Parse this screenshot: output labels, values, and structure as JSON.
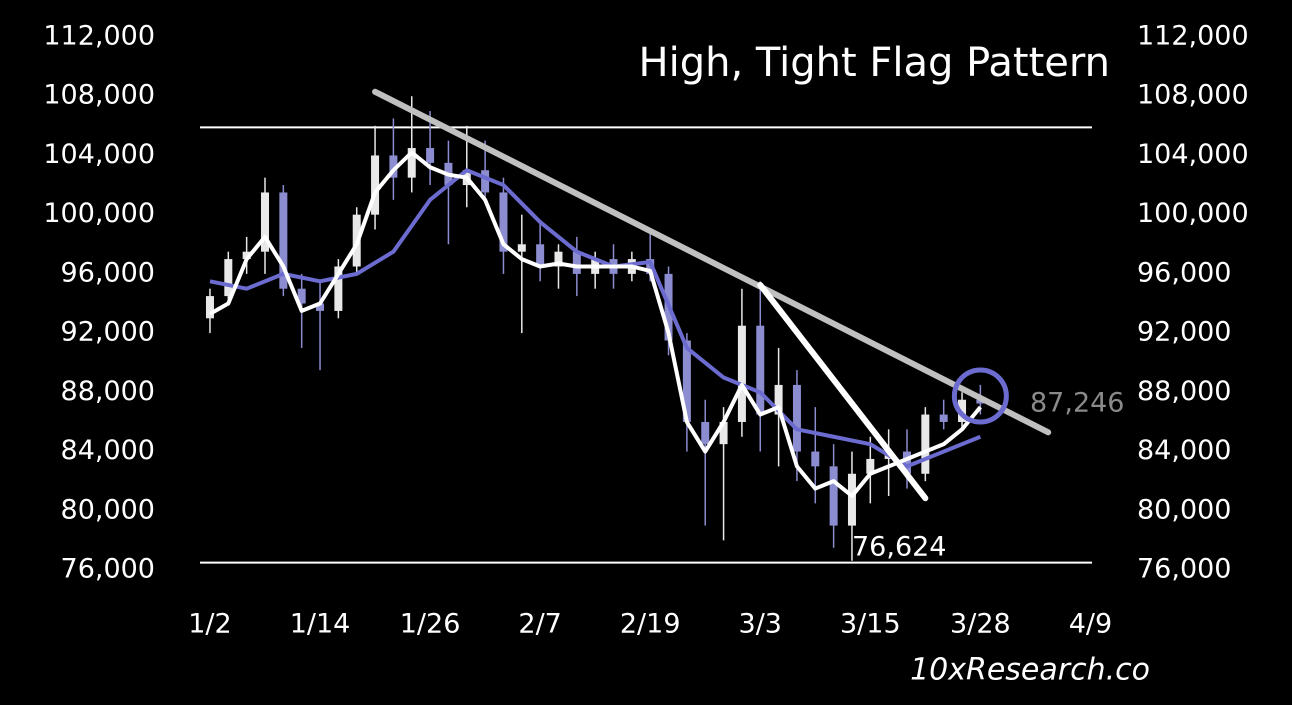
{
  "chart_data": {
    "type": "candlestick",
    "title": "High, Tight Flag Pattern",
    "watermark": "10xResearch.co",
    "x": [
      0,
      2,
      4,
      6,
      8,
      10,
      12,
      14,
      16,
      18,
      20,
      22,
      24,
      26,
      28,
      30,
      32,
      34,
      36,
      38,
      40,
      42,
      44,
      46,
      48,
      50,
      52,
      54,
      56,
      58,
      60,
      62,
      64,
      66,
      68,
      70,
      72,
      74,
      76,
      78,
      80,
      82,
      84
    ],
    "open": [
      93000,
      94500,
      97000,
      97500,
      101500,
      95000,
      94000,
      93500,
      96500,
      100000,
      104000,
      102500,
      104500,
      103500,
      102000,
      103000,
      101500,
      97500,
      98000,
      96500,
      97500,
      96000,
      97000,
      96000,
      97000,
      96000,
      91500,
      86000,
      84500,
      86000,
      92500,
      86500,
      88500,
      84000,
      83000,
      79000,
      82500,
      83500,
      84000,
      82500,
      86500,
      86000,
      87500
    ],
    "high": [
      95000,
      97500,
      98500,
      102500,
      102000,
      96000,
      95500,
      97000,
      100500,
      106000,
      106500,
      108000,
      107000,
      105000,
      106000,
      105000,
      102500,
      100000,
      99500,
      98000,
      98500,
      97500,
      98000,
      97500,
      99000,
      96500,
      92000,
      87500,
      87000,
      95000,
      95500,
      91000,
      89500,
      87000,
      84500,
      84000,
      85000,
      85500,
      85500,
      87000,
      87500,
      88000,
      88500
    ],
    "low": [
      92000,
      94000,
      96000,
      96000,
      94500,
      91000,
      89500,
      93000,
      96000,
      99000,
      101000,
      101500,
      102000,
      98000,
      100500,
      101000,
      96000,
      92000,
      95500,
      95000,
      94500,
      95000,
      95000,
      95500,
      95500,
      90500,
      84000,
      79000,
      78000,
      85000,
      84000,
      83000,
      82000,
      80500,
      77500,
      76624,
      80500,
      81000,
      81500,
      82000,
      85500,
      85500,
      86500
    ],
    "close": [
      94500,
      97000,
      97500,
      101500,
      95000,
      94000,
      93500,
      96500,
      100000,
      104000,
      102500,
      104500,
      103500,
      102000,
      103000,
      101500,
      97500,
      98000,
      96500,
      97500,
      96000,
      97000,
      96000,
      97000,
      96000,
      91500,
      86000,
      84500,
      86000,
      92500,
      86500,
      88500,
      84000,
      83000,
      79000,
      82500,
      83500,
      84000,
      82500,
      86500,
      86000,
      87500,
      87246
    ],
    "up_color": "#e8e8e8",
    "down_color": "#8c8cd0",
    "series": [
      {
        "color": "#ffffff",
        "x": [
          0,
          2,
          4,
          6,
          8,
          10,
          12,
          14,
          16,
          18,
          20,
          22,
          24,
          26,
          28,
          30,
          32,
          34,
          36,
          38,
          40,
          42,
          44,
          46,
          48,
          50,
          52,
          54,
          56,
          58,
          60,
          62,
          64,
          66,
          68,
          70,
          72,
          74,
          76,
          78,
          80,
          82,
          84
        ],
        "values": [
          93300,
          94000,
          97000,
          98500,
          96500,
          93500,
          94000,
          96000,
          98000,
          101500,
          103000,
          104200,
          103200,
          102700,
          102500,
          101000,
          98000,
          97000,
          96500,
          96700,
          96500,
          96500,
          96500,
          96500,
          96200,
          92000,
          86000,
          84000,
          86000,
          88500,
          86500,
          87000,
          83000,
          81500,
          82000,
          81000,
          82500,
          83000,
          83500,
          84000,
          84500,
          85500,
          87000
        ]
      },
      {
        "color": "#6b6bd0",
        "x": [
          0,
          4,
          8,
          12,
          16,
          20,
          24,
          28,
          32,
          36,
          40,
          44,
          48,
          52,
          56,
          60,
          64,
          68,
          72,
          76,
          80,
          84
        ],
        "values": [
          95500,
          95000,
          96000,
          95500,
          96000,
          97500,
          101000,
          103000,
          102000,
          99500,
          97500,
          96500,
          96800,
          91000,
          89000,
          88000,
          85500,
          85000,
          84500,
          83000,
          84000,
          85000
        ]
      }
    ],
    "trendlines": [
      {
        "color": "#c0c0c0",
        "x": [
          18,
          91.4
        ],
        "values": [
          108300,
          85300
        ]
      },
      {
        "color": "#ffffff",
        "x": [
          60,
          78
        ],
        "values": [
          95250,
          80850
        ]
      }
    ],
    "levels": [
      105900,
      76500
    ],
    "highlight": {
      "x": 84,
      "y": 87750,
      "color": "#6b6bd0"
    },
    "annotations": [
      "76,624",
      "87,246"
    ],
    "xlim": [
      -1,
      97
    ],
    "xticks": [
      {
        "value": 0,
        "label": "1/2"
      },
      {
        "value": 12,
        "label": "1/14"
      },
      {
        "value": 24,
        "label": "1/26"
      },
      {
        "value": 36,
        "label": "2/7"
      },
      {
        "value": 48,
        "label": "2/19"
      },
      {
        "value": 60,
        "label": "3/3"
      },
      {
        "value": 72,
        "label": "3/15"
      },
      {
        "value": 84,
        "label": "3/28"
      },
      {
        "value": 96,
        "label": "4/9"
      }
    ],
    "ylim": [
      76000,
      112000
    ],
    "yticks": [
      {
        "value": 76000,
        "label": "76,000"
      },
      {
        "value": 80000,
        "label": "80,000"
      },
      {
        "value": 84000,
        "label": "84,000"
      },
      {
        "value": 88000,
        "label": "88,000"
      },
      {
        "value": 92000,
        "label": "92,000"
      },
      {
        "value": 96000,
        "label": "96,000"
      },
      {
        "value": 100000,
        "label": "100,000"
      },
      {
        "value": 104000,
        "label": "104,000"
      },
      {
        "value": 108000,
        "label": "108,000"
      },
      {
        "value": 112000,
        "label": "112,000"
      }
    ],
    "y2lim": [
      76000,
      112000
    ],
    "y2ticks": [
      {
        "value": 76000,
        "label": "76,000"
      },
      {
        "value": 80000,
        "label": "80,000"
      },
      {
        "value": 84000,
        "label": "84,000"
      },
      {
        "value": 88000,
        "label": "88,000"
      },
      {
        "value": 92000,
        "label": "92,000"
      },
      {
        "value": 96000,
        "label": "96,000"
      },
      {
        "value": 100000,
        "label": "100,000"
      },
      {
        "value": 104000,
        "label": "104,000"
      },
      {
        "value": 108000,
        "label": "108,000"
      },
      {
        "value": 112000,
        "label": "112,000"
      }
    ]
  }
}
